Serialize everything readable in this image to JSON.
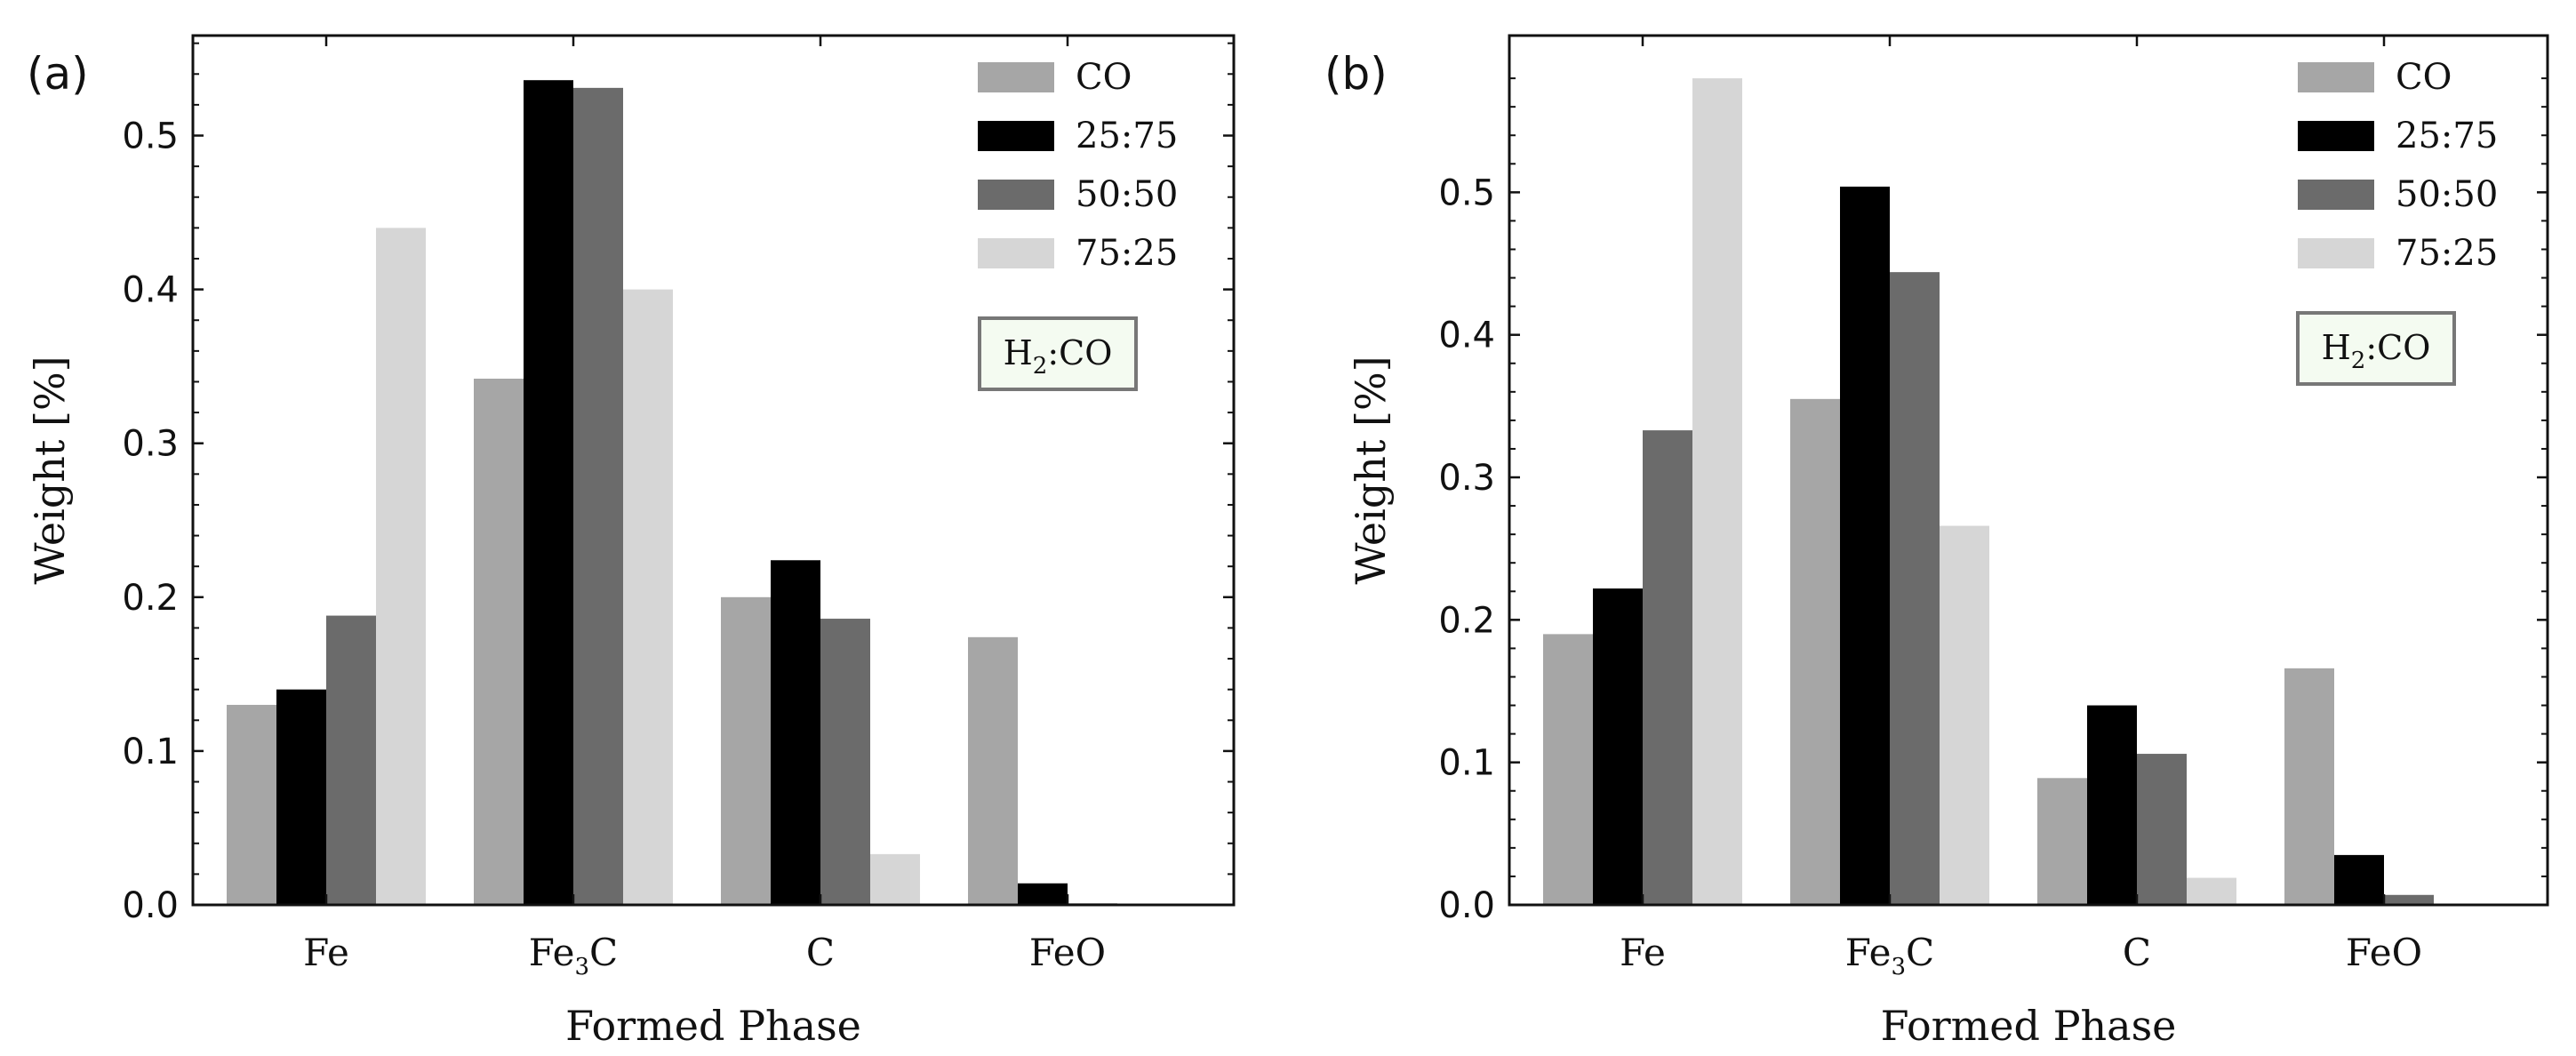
{
  "chart_data": [
    {
      "type": "bar",
      "panel_label": "(a)",
      "categories": [
        {
          "main": "Fe",
          "sub": "",
          "tail": ""
        },
        {
          "main": "Fe",
          "sub": "3",
          "tail": "C"
        },
        {
          "main": "C",
          "sub": "",
          "tail": ""
        },
        {
          "main": "FeO",
          "sub": "",
          "tail": ""
        }
      ],
      "series": [
        {
          "name": "CO",
          "color": "#a6a6a6",
          "values": [
            0.13,
            0.342,
            0.2,
            0.174
          ]
        },
        {
          "name": "25:75",
          "color": "#000000",
          "values": [
            0.14,
            0.536,
            0.224,
            0.014
          ]
        },
        {
          "name": "50:50",
          "color": "#6b6b6b",
          "values": [
            0.188,
            0.531,
            0.186,
            0.001
          ]
        },
        {
          "name": "75:25",
          "color": "#d6d6d6",
          "values": [
            0.44,
            0.4,
            0.033,
            0.0
          ]
        }
      ],
      "xlabel": "Formed Phase",
      "ylabel": "Weight [%]",
      "ylim": [
        0,
        0.565
      ],
      "yticks": [
        "0.0",
        "0.1",
        "0.2",
        "0.3",
        "0.4",
        "0.5"
      ],
      "annotation": {
        "main": "H",
        "sub": "2",
        "tail": ":CO"
      },
      "legend_position": "top-right",
      "grid": false
    },
    {
      "type": "bar",
      "panel_label": "(b)",
      "categories": [
        {
          "main": "Fe",
          "sub": "",
          "tail": ""
        },
        {
          "main": "Fe",
          "sub": "3",
          "tail": "C"
        },
        {
          "main": "C",
          "sub": "",
          "tail": ""
        },
        {
          "main": "FeO",
          "sub": "",
          "tail": ""
        }
      ],
      "series": [
        {
          "name": "CO",
          "color": "#a6a6a6",
          "values": [
            0.19,
            0.355,
            0.089,
            0.166
          ]
        },
        {
          "name": "25:75",
          "color": "#000000",
          "values": [
            0.222,
            0.504,
            0.14,
            0.035
          ]
        },
        {
          "name": "50:50",
          "color": "#6b6b6b",
          "values": [
            0.333,
            0.444,
            0.106,
            0.007
          ]
        },
        {
          "name": "75:25",
          "color": "#d6d6d6",
          "values": [
            0.58,
            0.266,
            0.019,
            0.0
          ]
        }
      ],
      "xlabel": "Formed Phase",
      "ylabel": "Weight [%]",
      "ylim": [
        0,
        0.61
      ],
      "yticks": [
        "0.0",
        "0.1",
        "0.2",
        "0.3",
        "0.4",
        "0.5"
      ],
      "annotation": {
        "main": "H",
        "sub": "2",
        "tail": ":CO"
      },
      "legend_position": "top-right",
      "grid": false
    }
  ]
}
